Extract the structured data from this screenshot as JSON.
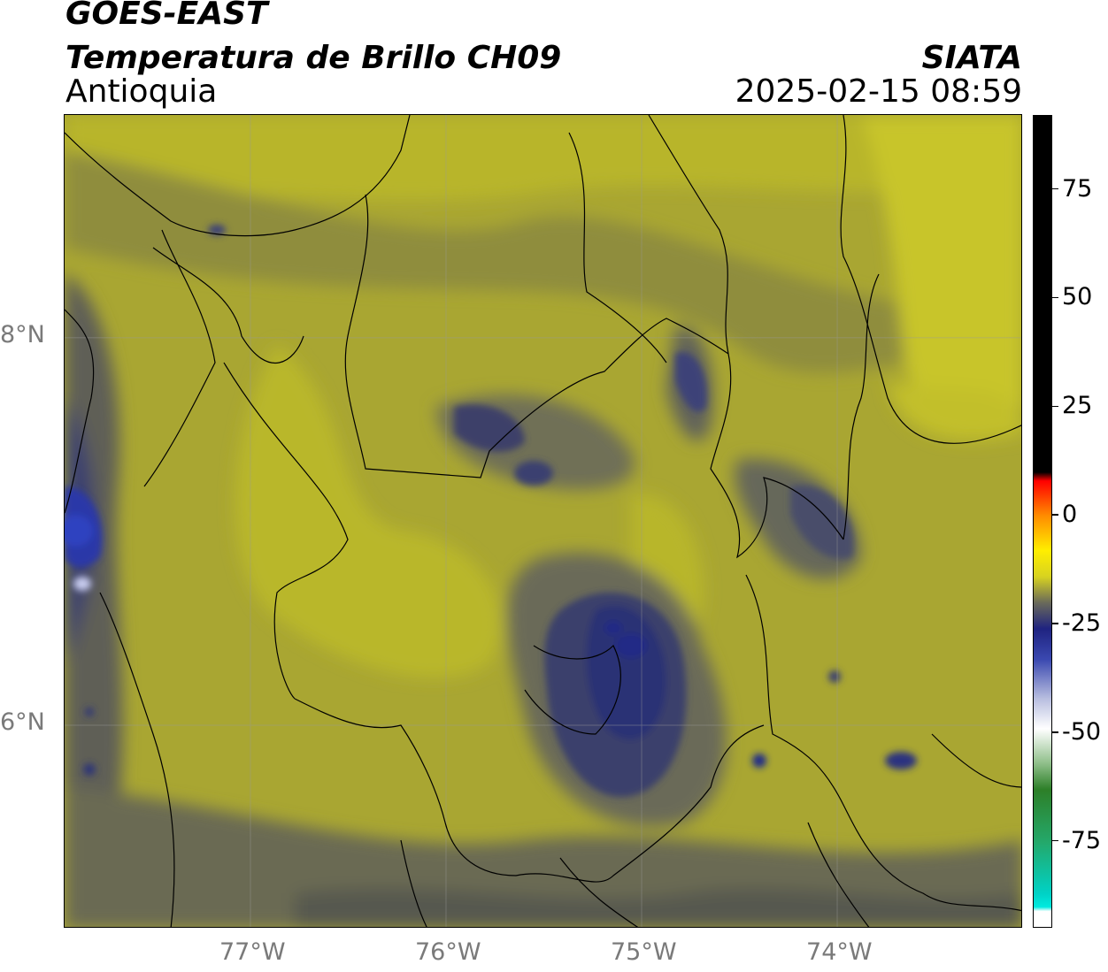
{
  "header": {
    "satellite": "GOES-EAST",
    "product": "Temperatura de Brillo CH09",
    "region": "Antioquia",
    "agency": "SIATA",
    "datetime": "2025-02-15 08:59"
  },
  "map": {
    "lon_range": [
      -77.95,
      -73.05
    ],
    "lat_range": [
      4.95,
      9.15
    ],
    "lon_ticks": [
      {
        "value": -77,
        "label": "77°W"
      },
      {
        "value": -76,
        "label": "76°W"
      },
      {
        "value": -75,
        "label": "75°W"
      },
      {
        "value": -74,
        "label": "74°W"
      }
    ],
    "lat_ticks": [
      {
        "value": 8,
        "label": "8°N"
      },
      {
        "value": 6,
        "label": "6°N"
      }
    ],
    "gridlines": true,
    "colors": {
      "yellow": "#b7b424",
      "olive": "#8c8b3c",
      "gray": "#5e5f57",
      "navy": "#2a2f6a",
      "blue": "#2b3aa6",
      "bright_yellow": "#d4d417"
    }
  },
  "colorbar": {
    "range": [
      -95,
      92
    ],
    "ticks": [
      {
        "value": 75,
        "label": "75"
      },
      {
        "value": 50,
        "label": "50"
      },
      {
        "value": 25,
        "label": "25"
      },
      {
        "value": 0,
        "label": "0"
      },
      {
        "value": -25,
        "label": "-25"
      },
      {
        "value": -50,
        "label": "-50"
      },
      {
        "value": -75,
        "label": "-75"
      }
    ],
    "stops": [
      {
        "value": 92,
        "color": "#000000"
      },
      {
        "value": 10,
        "color": "#000000"
      },
      {
        "value": 8,
        "color": "#ff0000"
      },
      {
        "value": 0,
        "color": "#ff8c00"
      },
      {
        "value": -8,
        "color": "#ffee00"
      },
      {
        "value": -14,
        "color": "#d8d320"
      },
      {
        "value": -20,
        "color": "#6a6a5a"
      },
      {
        "value": -26,
        "color": "#1f2380"
      },
      {
        "value": -33,
        "color": "#3a48b0"
      },
      {
        "value": -42,
        "color": "#b7bddf"
      },
      {
        "value": -49,
        "color": "#ffffff"
      },
      {
        "value": -57,
        "color": "#8fbf8a"
      },
      {
        "value": -63,
        "color": "#2d7f28"
      },
      {
        "value": -75,
        "color": "#24a86a"
      },
      {
        "value": -87,
        "color": "#00d2c6"
      },
      {
        "value": -90,
        "color": "#00eadf"
      },
      {
        "value": -91,
        "color": "#ffffff"
      },
      {
        "value": -95,
        "color": "#ffffff"
      }
    ]
  }
}
